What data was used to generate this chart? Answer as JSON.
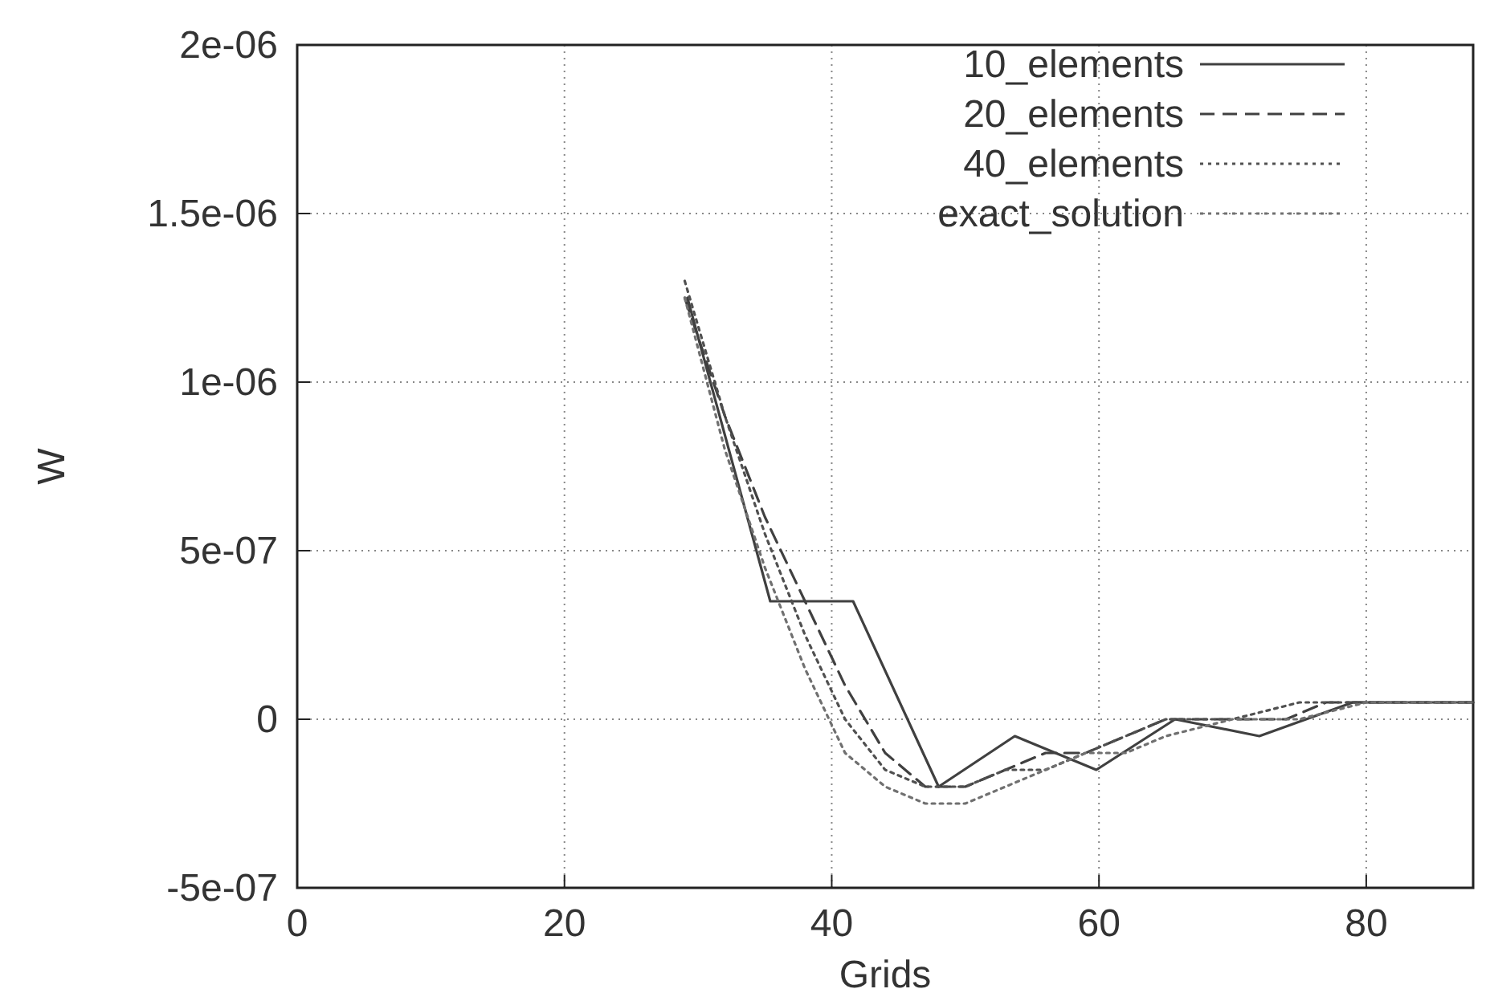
{
  "chart_data": {
    "type": "line",
    "xlabel": "Grids",
    "ylabel": "W",
    "xlim": [
      0,
      88
    ],
    "xticks": [
      0,
      20,
      40,
      60,
      80
    ],
    "ylim": [
      -5e-07,
      2e-06
    ],
    "yticks": [
      {
        "value": -5e-07,
        "label": "-5e-07"
      },
      {
        "value": 0,
        "label": "0"
      },
      {
        "value": 5e-07,
        "label": "5e-07"
      },
      {
        "value": 1e-06,
        "label": "1e-06"
      },
      {
        "value": 1.5e-06,
        "label": "1.5e-06"
      },
      {
        "value": 2e-06,
        "label": "2e-06"
      }
    ],
    "grid": true,
    "legend": "top right",
    "series": [
      {
        "name": "10_elements",
        "color": "#404040",
        "line_style": "solid",
        "x": [
          29.2,
          35.4,
          41.6,
          48,
          53.7,
          59.8,
          65.7,
          72,
          79,
          88
        ],
        "values": [
          1.25e-06,
          3.5e-07,
          3.5e-07,
          -2e-07,
          -5e-08,
          -1.5e-07,
          0,
          -5e-08,
          5e-08,
          5e-08
        ]
      },
      {
        "name": "20_elements",
        "color": "#404040",
        "line_style": "dashed",
        "x": [
          29,
          32,
          35,
          38,
          41,
          44,
          47,
          50,
          53,
          56,
          59,
          62,
          65,
          68,
          71,
          74,
          77,
          80,
          83,
          86,
          88
        ],
        "values": [
          1.25e-06,
          9e-07,
          6e-07,
          3.5e-07,
          1e-07,
          -1e-07,
          -2e-07,
          -2e-07,
          -1.5e-07,
          -1e-07,
          -1e-07,
          -5e-08,
          0,
          0,
          0,
          0,
          5e-08,
          5e-08,
          5e-08,
          5e-08,
          5e-08
        ]
      },
      {
        "name": "40_elements",
        "color": "#505050",
        "line_style": "dotted",
        "x": [
          29,
          32,
          35,
          38,
          41,
          44,
          47,
          50,
          53,
          56,
          59,
          62,
          65,
          70,
          75,
          80,
          88
        ],
        "values": [
          1.3e-06,
          9e-07,
          5.5e-07,
          2.5e-07,
          0,
          -1.5e-07,
          -2e-07,
          -2e-07,
          -1.5e-07,
          -1.5e-07,
          -1e-07,
          -5e-08,
          0,
          0,
          5e-08,
          5e-08,
          5e-08
        ]
      },
      {
        "name": "exact_solution",
        "color": "#707070",
        "line_style": "dotted",
        "x": [
          29,
          32,
          35,
          38,
          41,
          44,
          47,
          50,
          53,
          56,
          59,
          62,
          65,
          70,
          75,
          80,
          88
        ],
        "values": [
          1.25e-06,
          8e-07,
          4.5e-07,
          1.5e-07,
          -1e-07,
          -2e-07,
          -2.5e-07,
          -2.5e-07,
          -2e-07,
          -1.5e-07,
          -1e-07,
          -1e-07,
          -5e-08,
          0,
          0,
          5e-08,
          5e-08
        ]
      }
    ]
  }
}
